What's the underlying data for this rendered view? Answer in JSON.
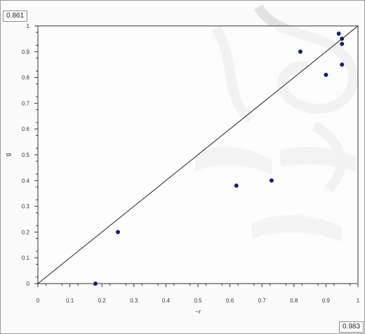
{
  "readouts": {
    "y_value": "0.861",
    "x_value": "0.983"
  },
  "chart_data": {
    "type": "scatter",
    "title": "",
    "xlabel": "~r",
    "ylabel": "g",
    "xlim": [
      0,
      1
    ],
    "ylim": [
      0,
      1
    ],
    "x_ticks": [
      "0",
      "0.1",
      "0.2",
      "0.3",
      "0.4",
      "0.5",
      "0.6",
      "0.7",
      "0.8",
      "0.9",
      "1"
    ],
    "y_ticks": [
      "0",
      "0.1",
      "0.2",
      "0.3",
      "0.4",
      "0.5",
      "0.6",
      "0.7",
      "0.8",
      "0.9",
      "1"
    ],
    "grid": false,
    "series": [
      {
        "color": "#1c1c7a",
        "points": [
          {
            "x": 0.18,
            "y": 0.0
          },
          {
            "x": 0.25,
            "y": 0.2
          },
          {
            "x": 0.62,
            "y": 0.38
          },
          {
            "x": 0.73,
            "y": 0.4
          },
          {
            "x": 0.82,
            "y": 0.9
          },
          {
            "x": 0.9,
            "y": 0.81
          },
          {
            "x": 0.94,
            "y": 0.97
          },
          {
            "x": 0.95,
            "y": 0.95
          },
          {
            "x": 0.95,
            "y": 0.93
          },
          {
            "x": 0.95,
            "y": 0.85
          }
        ]
      }
    ],
    "reference_line": {
      "from": [
        0,
        0
      ],
      "to": [
        1,
        1
      ],
      "color": "#222222"
    }
  }
}
